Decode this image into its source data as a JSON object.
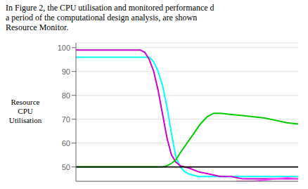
{
  "chart_data": {
    "type": "line",
    "annotations": [
      "In Figure 2, the CPU utilisation and monitored performance d",
      "a period of the computational design analysis, are shown",
      "Resource Monitor."
    ],
    "y_label": "Resource\n   CPU\nUtilisation",
    "xlim": [
      0,
      100
    ],
    "ylim": [
      44,
      102
    ],
    "yticks": [
      50,
      60,
      70,
      80,
      90,
      100
    ],
    "grid": true,
    "tick_labels": "y",
    "reference_line": {
      "y": 50,
      "color": "#000000"
    },
    "series": [
      {
        "color": "#00ffff",
        "x": [
          0,
          5,
          10,
          15,
          20,
          25,
          30,
          31,
          33,
          35,
          37,
          39,
          41,
          43,
          45,
          47,
          49,
          51,
          55,
          60,
          65,
          70,
          75,
          80,
          85,
          90,
          95,
          100
        ],
        "values": [
          96,
          96,
          96,
          96,
          96,
          96,
          96,
          96,
          96,
          94,
          90,
          84,
          75,
          64,
          54,
          50,
          48,
          47,
          46,
          46,
          46,
          46,
          46,
          46,
          46,
          46,
          46,
          46
        ]
      },
      {
        "color": "#cc00cc",
        "x": [
          0,
          5,
          10,
          15,
          20,
          25,
          27,
          29,
          31,
          33,
          35,
          37,
          39,
          41,
          43,
          45,
          47,
          49,
          51,
          55,
          60,
          65,
          70,
          75,
          80,
          85,
          90,
          95,
          100
        ],
        "values": [
          99,
          99,
          99,
          99,
          99,
          99,
          99,
          99,
          98,
          95,
          90,
          82,
          72,
          62,
          55,
          52,
          50.5,
          50,
          49.5,
          48,
          47,
          46,
          46,
          45,
          45,
          45,
          45,
          45,
          45
        ]
      },
      {
        "color": "#00cc00",
        "x": [
          0,
          25,
          30,
          33,
          35,
          37,
          39,
          41,
          43,
          45,
          47,
          50,
          53,
          56,
          59,
          62,
          65,
          70,
          75,
          80,
          85,
          90,
          95,
          100
        ],
        "values": [
          50,
          50,
          50,
          50,
          50,
          50,
          50,
          50.5,
          51.5,
          53,
          56,
          60,
          64,
          68,
          71,
          72.5,
          72.5,
          72,
          71.5,
          71,
          70.5,
          69.5,
          68.5,
          68
        ]
      },
      {
        "color": "#ff44ff",
        "x": [
          72,
          75,
          80,
          85,
          90,
          95,
          100
        ],
        "values": [
          44,
          44,
          44,
          44.5,
          45,
          45.5,
          45
        ]
      }
    ]
  }
}
